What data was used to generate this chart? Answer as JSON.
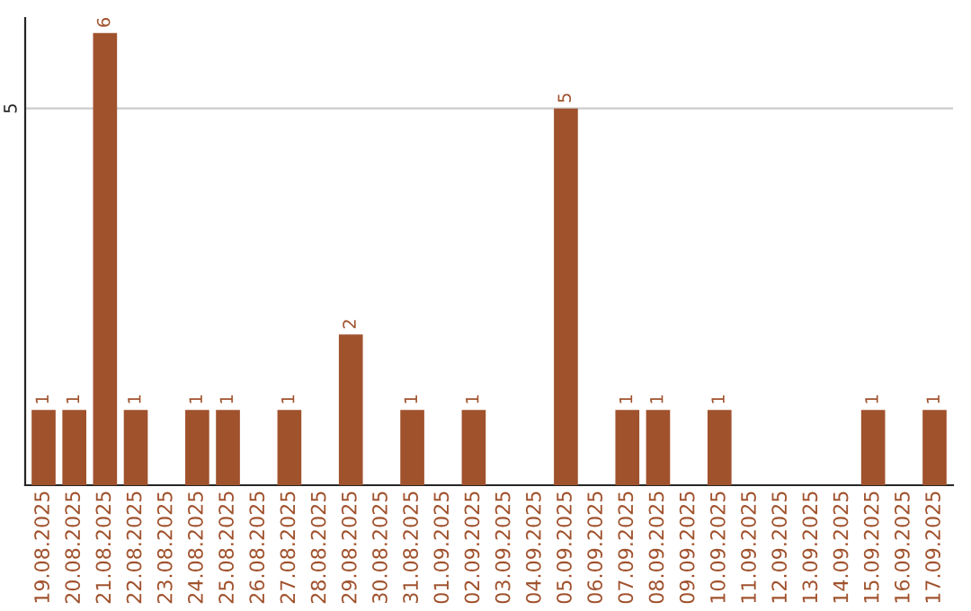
{
  "chart_data": {
    "type": "bar",
    "categories": [
      "19.08.2025",
      "20.08.2025",
      "21.08.2025",
      "22.08.2025",
      "23.08.2025",
      "24.08.2025",
      "25.08.2025",
      "26.08.2025",
      "27.08.2025",
      "28.08.2025",
      "29.08.2025",
      "30.08.2025",
      "31.08.2025",
      "01.09.2025",
      "02.09.2025",
      "03.09.2025",
      "04.09.2025",
      "05.09.2025",
      "06.09.2025",
      "07.09.2025",
      "08.09.2025",
      "09.09.2025",
      "10.09.2025",
      "11.09.2025",
      "12.09.2025",
      "13.09.2025",
      "14.09.2025",
      "15.09.2025",
      "16.09.2025",
      "17.09.2025"
    ],
    "values": [
      1,
      1,
      6,
      1,
      null,
      1,
      1,
      null,
      1,
      null,
      2,
      null,
      1,
      null,
      1,
      null,
      null,
      5,
      null,
      1,
      1,
      null,
      1,
      null,
      null,
      null,
      null,
      1,
      null,
      1
    ],
    "value_labels": [
      "1",
      "1",
      "6",
      "1",
      null,
      "1",
      "1",
      null,
      "1",
      null,
      "2",
      null,
      "1",
      null,
      "1",
      null,
      null,
      "5",
      null,
      "1",
      "1",
      null,
      "1",
      null,
      null,
      null,
      null,
      "1",
      null,
      "1"
    ],
    "color": "#a0522d",
    "ylim": [
      0,
      6.2
    ],
    "yticks": [
      5
    ],
    "grid": "y"
  }
}
